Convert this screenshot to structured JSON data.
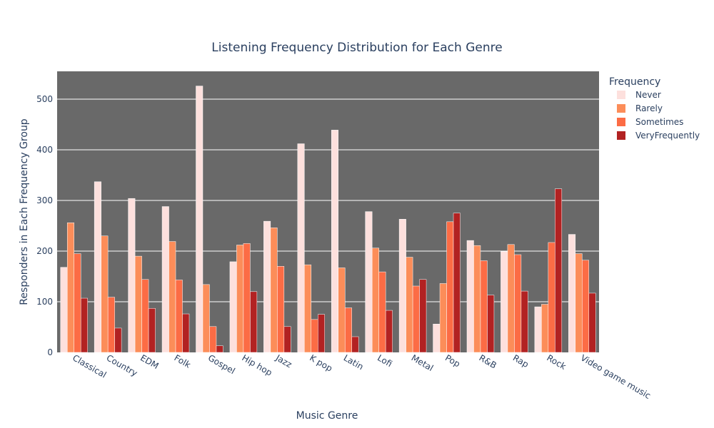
{
  "chart_data": {
    "type": "bar",
    "title": "Listening Frequency Distribution for Each Genre",
    "xlabel": "Music Genre",
    "ylabel": "Responders in Each Frequency Group",
    "ylim": [
      0,
      555
    ],
    "yticks": [
      0,
      100,
      200,
      300,
      400,
      500
    ],
    "grid": true,
    "legend_title": "Frequency",
    "legend_position": "top-right",
    "plot_background": "#696969",
    "categories": [
      "Classical",
      "Country",
      "EDM",
      "Folk",
      "Gospel",
      "Hip hop",
      "Jazz",
      "K pop",
      "Latin",
      "Lofi",
      "Metal",
      "Pop",
      "R&B",
      "Rap",
      "Rock",
      "Video game music"
    ],
    "series": [
      {
        "name": "Never",
        "color": "#fde0dd",
        "values": [
          168,
          337,
          304,
          288,
          526,
          179,
          259,
          412,
          439,
          278,
          263,
          56,
          221,
          199,
          90,
          233
        ]
      },
      {
        "name": "Rarely",
        "color": "#fc8d59",
        "values": [
          256,
          230,
          190,
          219,
          134,
          212,
          246,
          173,
          167,
          206,
          188,
          136,
          211,
          213,
          95,
          195
        ]
      },
      {
        "name": "Sometimes",
        "color": "#fc6c45",
        "values": [
          195,
          109,
          144,
          143,
          51,
          215,
          170,
          65,
          88,
          159,
          131,
          258,
          181,
          193,
          217,
          182
        ]
      },
      {
        "name": "VeryFrequently",
        "color": "#b22222",
        "values": [
          107,
          48,
          87,
          76,
          13,
          120,
          51,
          75,
          31,
          83,
          144,
          275,
          113,
          121,
          323,
          117
        ]
      }
    ]
  }
}
